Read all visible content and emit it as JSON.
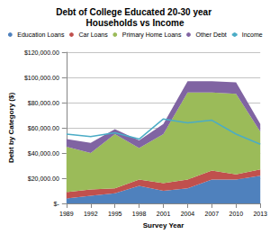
{
  "chart_data": {
    "type": "area",
    "title": "Debt of College Educated 20-30 year Households vs Income",
    "x_label": "Survey Year",
    "y_label": "Debt by Category ($)",
    "categories": [
      "1989",
      "1992",
      "1995",
      "1998",
      "2001",
      "2004",
      "2007",
      "2010",
      "2013"
    ],
    "stacked": true,
    "grid": true,
    "legend": "top",
    "series": [
      {
        "name": "Education Loans",
        "color": "#4f81bd",
        "type": "area",
        "values": [
          4000,
          6000,
          8000,
          14000,
          10000,
          12000,
          19000,
          19000,
          22000
        ]
      },
      {
        "name": "Car Loans",
        "color": "#c0504d",
        "type": "area",
        "values": [
          5000,
          5000,
          4000,
          5000,
          6000,
          7000,
          7000,
          4000,
          5000
        ]
      },
      {
        "name": "Primary Home Loans",
        "color": "#9bbb59",
        "type": "area",
        "values": [
          36000,
          29000,
          43000,
          25000,
          39000,
          69000,
          62000,
          64000,
          30000
        ]
      },
      {
        "name": "Other Debt",
        "color": "#8064a2",
        "type": "area",
        "values": [
          6000,
          8000,
          4000,
          6000,
          8000,
          9000,
          9000,
          9000,
          6000
        ]
      },
      {
        "name": "Income",
        "color": "#4bacc6",
        "type": "line",
        "values": [
          55000,
          53000,
          56000,
          51000,
          67000,
          64000,
          66000,
          55000,
          47000
        ]
      }
    ],
    "ylim": [
      0,
      120000
    ],
    "yticks": [
      {
        "value": 0,
        "label": "$-"
      },
      {
        "value": 20000,
        "label": "$20,000.00"
      },
      {
        "value": 40000,
        "label": "$40,000.00"
      },
      {
        "value": 60000,
        "label": "$60,000.00"
      },
      {
        "value": 80000,
        "label": "$80,000.00"
      },
      {
        "value": 100000,
        "label": "$100,000.00"
      },
      {
        "value": 120000,
        "label": "$120,000.00"
      }
    ]
  }
}
